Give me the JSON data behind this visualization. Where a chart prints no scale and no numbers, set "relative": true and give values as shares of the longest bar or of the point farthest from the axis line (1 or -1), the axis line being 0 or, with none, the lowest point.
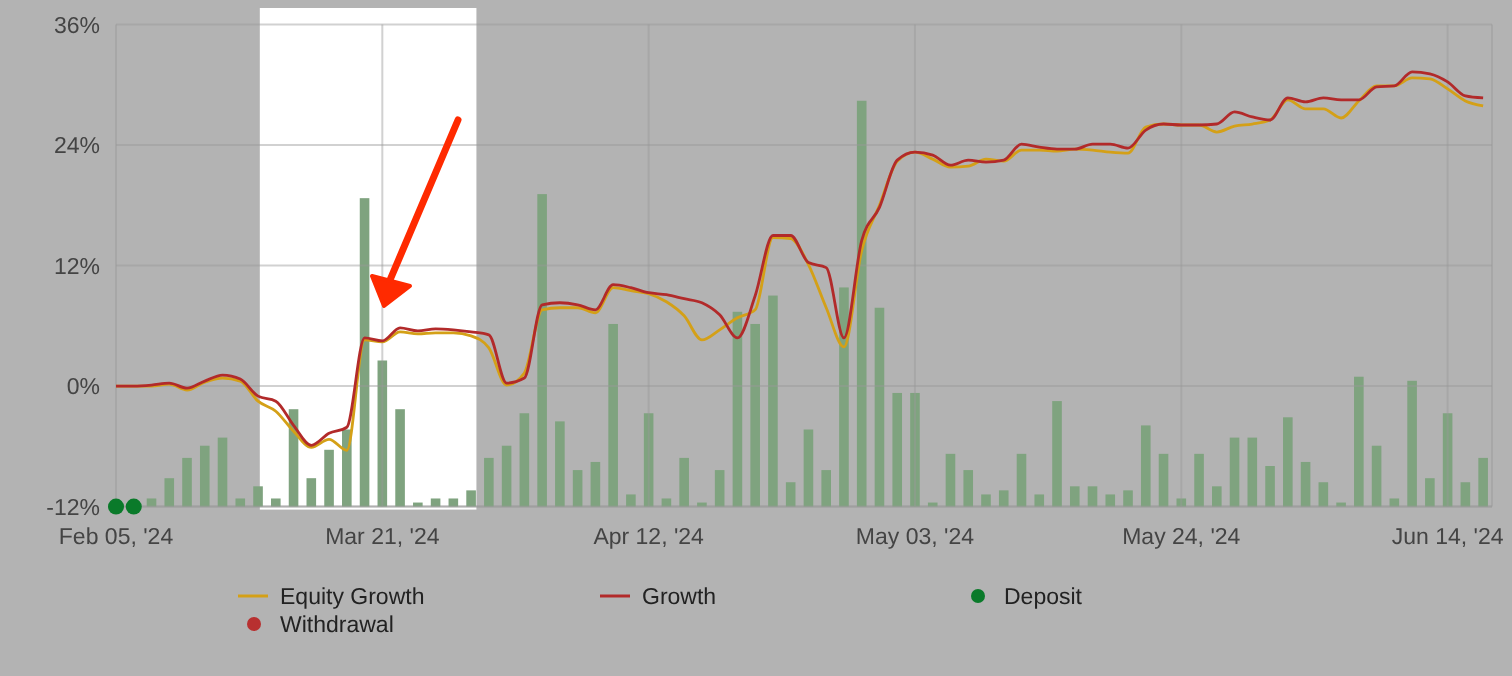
{
  "chart_data": [
    {
      "type": "line",
      "categories": [
        "Feb 05, '24",
        null,
        null,
        null,
        null,
        null,
        null,
        null,
        null,
        null,
        null,
        null,
        null,
        null,
        null,
        "Mar 21, '24",
        null,
        null,
        null,
        null,
        null,
        null,
        null,
        null,
        null,
        null,
        null,
        null,
        null,
        null,
        "Apr 12, '24",
        null,
        null,
        null,
        null,
        null,
        null,
        null,
        null,
        null,
        null,
        null,
        null,
        null,
        null,
        "May 03, '24",
        null,
        null,
        null,
        null,
        null,
        null,
        null,
        null,
        null,
        null,
        null,
        null,
        null,
        null,
        "May 24, '24",
        null,
        null,
        null,
        null,
        null,
        null,
        null,
        null,
        null,
        null,
        null,
        null,
        null,
        null,
        "Jun 14, '24",
        null,
        null
      ],
      "series": [
        {
          "name": "Equity Growth",
          "color": "#d4a017",
          "values": [
            0,
            0,
            0,
            0.2,
            -0.4,
            0.4,
            0.8,
            0.5,
            -1.5,
            -2.5,
            -4.5,
            -6.1,
            -5.3,
            -6.4,
            4.6,
            4.4,
            5.4,
            5.2,
            5.3,
            5.3,
            5.0,
            3.8,
            0.1,
            1.3,
            7.6,
            7.8,
            7.8,
            7.3,
            9.8,
            9.5,
            9.2,
            8.4,
            7.0,
            4.6,
            5.6,
            6.8,
            7.6,
            14.8,
            14.7,
            12.1,
            7.8,
            3.9,
            13.5,
            18.0,
            22.4,
            23.3,
            22.6,
            21.8,
            21.9,
            22.6,
            22.4,
            23.5,
            23.5,
            23.4,
            23.6,
            23.5,
            23.3,
            23.2,
            25.8,
            26.1,
            26.0,
            26.0,
            25.3,
            25.9,
            26.1,
            26.5,
            28.5,
            27.6,
            27.6,
            26.7,
            28.4,
            29.9,
            29.9,
            30.7,
            30.6,
            29.6,
            28.4,
            27.9
          ]
        },
        {
          "name": "Growth",
          "color": "#b22a2a",
          "values": [
            0,
            0,
            0.1,
            0.3,
            -0.2,
            0.5,
            1.1,
            0.7,
            -1.0,
            -1.5,
            -3.9,
            -5.9,
            -4.7,
            -4.1,
            4.8,
            4.5,
            5.8,
            5.5,
            5.7,
            5.6,
            5.4,
            5.1,
            0.3,
            0.8,
            8.1,
            8.3,
            8.1,
            7.6,
            10.1,
            9.8,
            9.3,
            9.1,
            8.7,
            8.3,
            7.1,
            4.8,
            9.0,
            15.0,
            15.0,
            12.3,
            11.8,
            4.8,
            14.5,
            17.8,
            22.5,
            23.3,
            23.0,
            22.0,
            22.5,
            22.3,
            22.5,
            24.1,
            23.8,
            23.6,
            23.6,
            24.1,
            24.1,
            23.7,
            25.5,
            26.1,
            26.0,
            26.0,
            26.1,
            27.3,
            26.8,
            26.5,
            28.7,
            28.3,
            28.7,
            28.5,
            28.5,
            29.8,
            29.9,
            31.3,
            31.1,
            30.3,
            28.9,
            28.7
          ]
        },
        {
          "name": "Deposit",
          "type": "scatter",
          "marker": "circle",
          "color": "#0a7a2a",
          "values": [
            -12,
            -12,
            null,
            null,
            null,
            null,
            null,
            null,
            null,
            null,
            null,
            null,
            null,
            null,
            null,
            null,
            null,
            null,
            null,
            null,
            null,
            null,
            null,
            null,
            null,
            null,
            null,
            null,
            null,
            null,
            null,
            null,
            null,
            null,
            null,
            null,
            null,
            null,
            null,
            null,
            null,
            null,
            null,
            null,
            null,
            null,
            null,
            null,
            null,
            null,
            null,
            null,
            null,
            null,
            null,
            null,
            null,
            null,
            null,
            null,
            null,
            null,
            null,
            null,
            null,
            null,
            null,
            null,
            null,
            null,
            null,
            null,
            null,
            null,
            null,
            null,
            null,
            null
          ]
        },
        {
          "name": "Withdrawal",
          "type": "scatter",
          "marker": "circle",
          "color": "#b83030",
          "values": [
            null,
            null,
            null,
            null,
            null,
            null,
            null,
            null,
            null,
            null,
            null,
            null,
            null,
            null,
            null,
            null,
            null,
            null,
            null,
            null,
            null,
            null,
            null,
            null,
            null,
            null,
            null,
            null,
            null,
            null,
            null,
            null,
            null,
            null,
            null,
            null,
            null,
            null,
            null,
            null,
            null,
            null,
            null,
            null,
            null,
            null,
            null,
            null,
            null,
            null,
            null,
            null,
            null,
            null,
            null,
            null,
            null,
            null,
            null,
            null,
            null,
            null,
            null,
            null,
            null,
            null,
            null,
            null,
            null,
            null,
            null,
            null,
            null,
            null,
            null,
            null,
            null,
            null
          ]
        }
      ],
      "ylim": [
        -12,
        36
      ],
      "yticks": [
        {
          "value": -12,
          "label": "-12%"
        },
        {
          "value": 0,
          "label": "0%"
        },
        {
          "value": 12,
          "label": "12%"
        },
        {
          "value": 24,
          "label": "24%"
        },
        {
          "value": 36,
          "label": "36%"
        }
      ],
      "grid": true,
      "legend": "bottom"
    },
    {
      "type": "bar",
      "relative": true,
      "color": "#7fa37f",
      "categories": [
        null,
        null,
        null,
        null,
        null,
        null,
        null,
        null,
        null,
        null,
        null,
        null,
        null,
        null,
        null,
        null,
        null,
        null,
        null,
        null,
        null,
        null,
        null,
        null,
        null,
        null,
        null,
        null,
        null,
        null,
        null,
        null,
        null,
        null,
        null,
        null,
        null,
        null,
        null,
        null,
        null,
        null,
        null,
        null,
        null,
        null,
        null,
        null,
        null,
        null,
        null,
        null,
        null,
        null,
        null,
        null,
        null,
        null,
        null,
        null,
        null,
        null,
        null,
        null,
        null,
        null,
        null,
        null,
        null,
        null,
        null,
        null,
        null,
        null,
        null,
        null,
        null,
        null
      ],
      "values": [
        null,
        null,
        0.02,
        0.07,
        0.12,
        0.15,
        0.17,
        0.02,
        0.05,
        0.02,
        0.24,
        0.07,
        0.14,
        0.19,
        0.76,
        0.36,
        0.24,
        0.01,
        0.02,
        0.02,
        0.04,
        0.12,
        0.15,
        0.23,
        0.77,
        0.21,
        0.09,
        0.11,
        0.45,
        0.03,
        0.23,
        0.02,
        0.12,
        0.01,
        0.09,
        0.48,
        0.45,
        0.52,
        0.06,
        0.19,
        0.09,
        0.54,
        1,
        0.49,
        0.28,
        0.28,
        0.01,
        0.13,
        0.09,
        0.03,
        0.04,
        0.13,
        0.03,
        0.26,
        0.05,
        0.05,
        0.03,
        0.04,
        0.2,
        0.13,
        0.02,
        0.13,
        0.05,
        0.17,
        0.17,
        0.1,
        0.22,
        0.11,
        0.06,
        0.01,
        0.32,
        0.15,
        0.02,
        0.31,
        0.07,
        0.23,
        0.06,
        0.12
      ]
    }
  ]
}
